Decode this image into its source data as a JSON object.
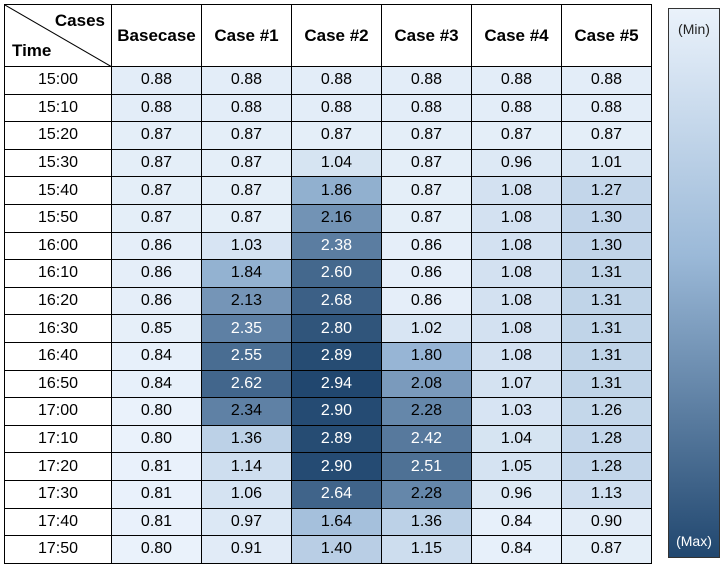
{
  "chart_data": {
    "type": "heatmap",
    "row_header_label": "Time",
    "column_header_label": "Cases",
    "columns": [
      "Basecase",
      "Case #1",
      "Case #2",
      "Case #3",
      "Case #4",
      "Case #5"
    ],
    "rows": [
      "15:00",
      "15:10",
      "15:20",
      "15:30",
      "15:40",
      "15:50",
      "16:00",
      "16:10",
      "16:20",
      "16:30",
      "16:40",
      "16:50",
      "17:00",
      "17:10",
      "17:20",
      "17:30",
      "17:40",
      "17:50"
    ],
    "values": [
      [
        "0.88",
        "0.88",
        "0.88",
        "0.88",
        "0.88",
        "0.88"
      ],
      [
        "0.88",
        "0.88",
        "0.88",
        "0.88",
        "0.88",
        "0.88"
      ],
      [
        "0.87",
        "0.87",
        "0.87",
        "0.87",
        "0.87",
        "0.87"
      ],
      [
        "0.87",
        "0.87",
        "1.04",
        "0.87",
        "0.96",
        "1.01"
      ],
      [
        "0.87",
        "0.87",
        "1.86",
        "0.87",
        "1.08",
        "1.27"
      ],
      [
        "0.87",
        "0.87",
        "2.16",
        "0.87",
        "1.08",
        "1.30"
      ],
      [
        "0.86",
        "1.03",
        "2.38",
        "0.86",
        "1.08",
        "1.30"
      ],
      [
        "0.86",
        "1.84",
        "2.60",
        "0.86",
        "1.08",
        "1.31"
      ],
      [
        "0.86",
        "2.13",
        "2.68",
        "0.86",
        "1.08",
        "1.31"
      ],
      [
        "0.85",
        "2.35",
        "2.80",
        "1.02",
        "1.08",
        "1.31"
      ],
      [
        "0.84",
        "2.55",
        "2.89",
        "1.80",
        "1.08",
        "1.31"
      ],
      [
        "0.84",
        "2.62",
        "2.94",
        "2.08",
        "1.07",
        "1.31"
      ],
      [
        "0.80",
        "2.34",
        "2.90",
        "2.28",
        "1.03",
        "1.26"
      ],
      [
        "0.80",
        "1.36",
        "2.89",
        "2.42",
        "1.04",
        "1.28"
      ],
      [
        "0.81",
        "1.14",
        "2.90",
        "2.51",
        "1.05",
        "1.28"
      ],
      [
        "0.81",
        "1.06",
        "2.64",
        "2.28",
        "0.96",
        "1.13"
      ],
      [
        "0.81",
        "0.97",
        "1.64",
        "1.36",
        "0.84",
        "0.90"
      ],
      [
        "0.80",
        "0.91",
        "1.40",
        "1.15",
        "0.84",
        "0.87"
      ]
    ],
    "colorscale": {
      "min_color": "#eaf2fb",
      "max_color": "#21476f",
      "min_label": "(Min)",
      "max_label": "(Max)"
    }
  }
}
